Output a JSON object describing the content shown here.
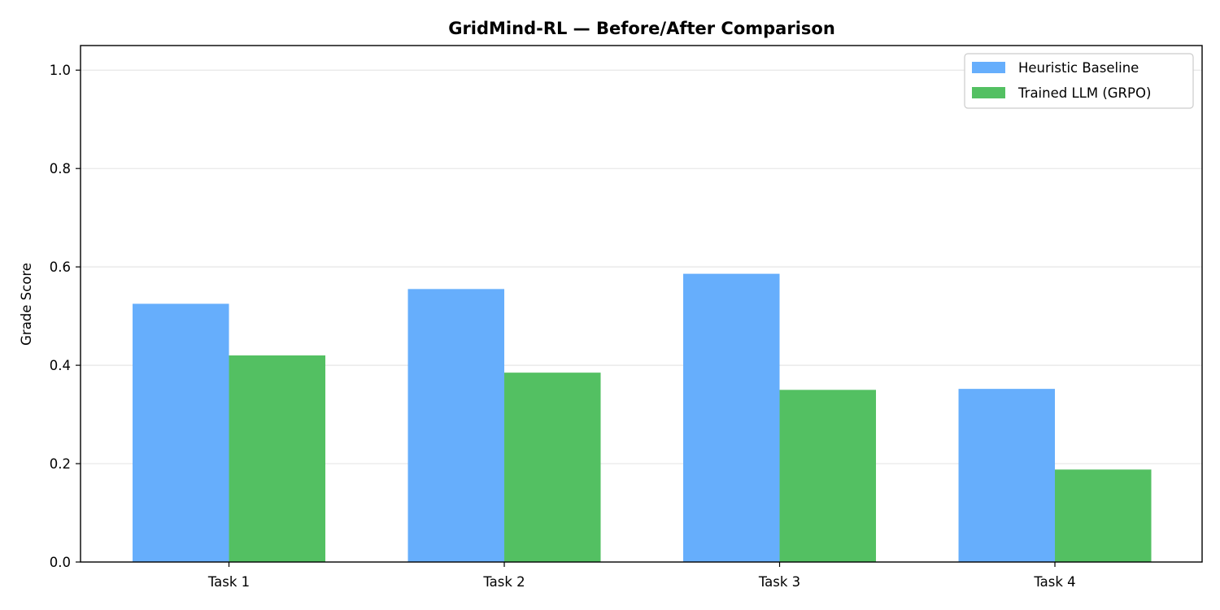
{
  "chart_data": {
    "type": "bar",
    "title": "GridMind-RL — Before/After Comparison",
    "xlabel": "",
    "ylabel": "Grade Score",
    "categories": [
      "Task 1",
      "Task 2",
      "Task 3",
      "Task 4"
    ],
    "series": [
      {
        "name": "Heuristic Baseline",
        "color": "#66aefc",
        "values": [
          0.525,
          0.555,
          0.586,
          0.352
        ]
      },
      {
        "name": "Trained LLM (GRPO)",
        "color": "#53c062",
        "values": [
          0.42,
          0.385,
          0.35,
          0.188
        ]
      }
    ],
    "ylim": [
      0,
      1.05
    ],
    "yticks": [
      0.0,
      0.2,
      0.4,
      0.6,
      0.8,
      1.0
    ],
    "ytick_labels": [
      "0.0",
      "0.2",
      "0.4",
      "0.6",
      "0.8",
      "1.0"
    ],
    "grid": "y",
    "legend_position": "top-right"
  }
}
